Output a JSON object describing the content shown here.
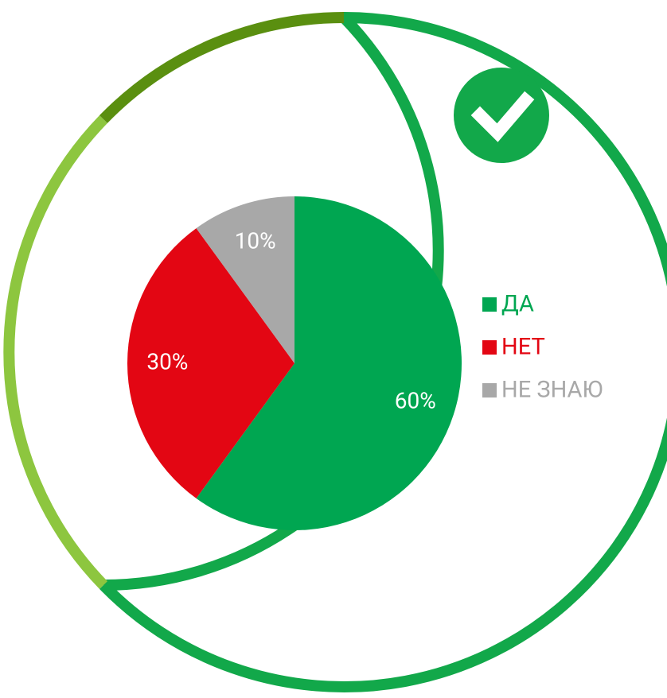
{
  "chart_data": {
    "type": "pie",
    "categories": [
      "ДА",
      "НЕТ",
      "НЕ ЗНАЮ"
    ],
    "values": [
      60,
      30,
      10
    ],
    "value_labels": [
      "60%",
      "30%",
      "10%"
    ],
    "colors": [
      "#00a651",
      "#e30613",
      "#a8a8a8"
    ],
    "legend": "right"
  }
}
